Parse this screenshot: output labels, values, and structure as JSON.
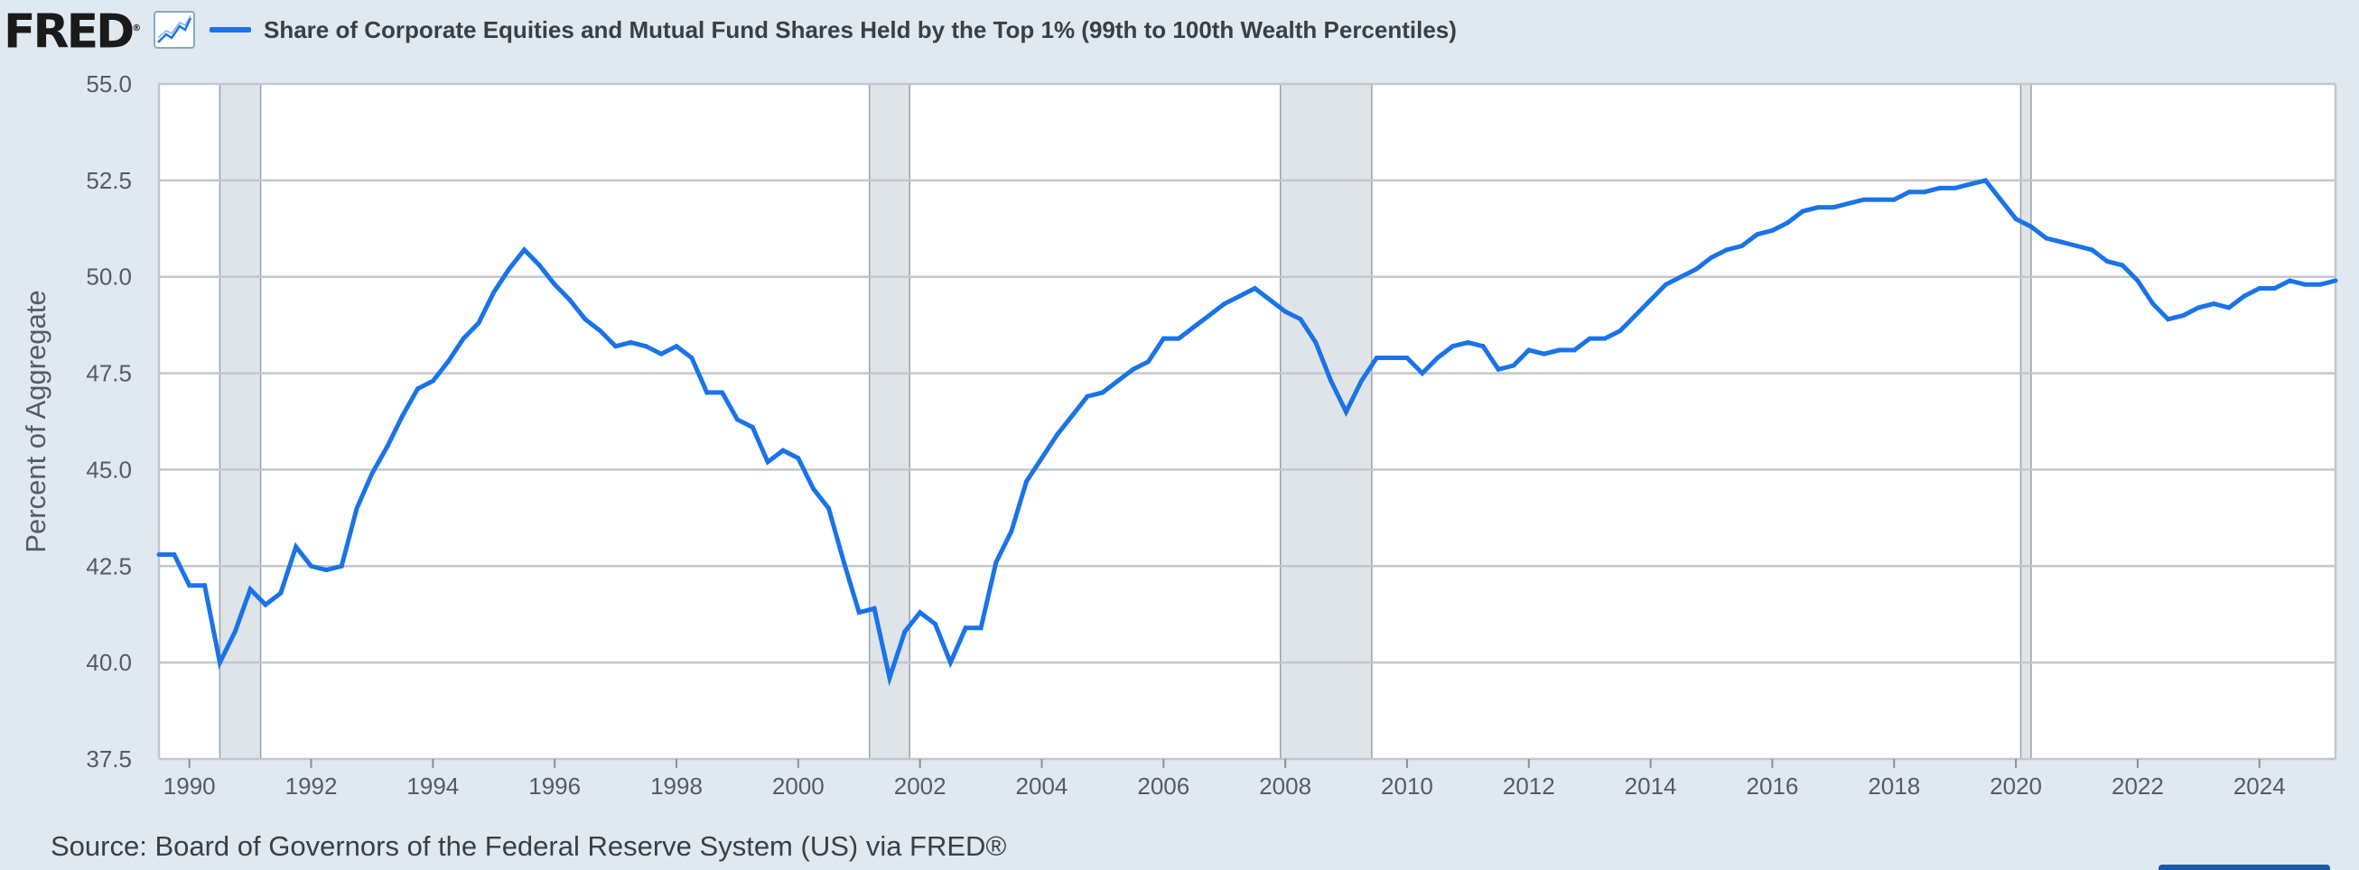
{
  "header": {
    "logo_text": "FRED",
    "logo_mark": "®",
    "icon": "line-graph-icon",
    "series_color": "#1a73e8"
  },
  "source_text": "Source: Board of Governors of the Federal Reserve System (US) via FRED®",
  "chart_data": {
    "type": "line",
    "title": "Share of Corporate Equities and Mutual Fund Shares Held by the Top 1% (99th to 100th Wealth Percentiles)",
    "ylabel": "Percent of Aggregate",
    "xlabel": "",
    "ylim": [
      37.5,
      55.0
    ],
    "xlim": [
      1989.5,
      2025.25
    ],
    "yticks": [
      "37.5",
      "40.0",
      "42.5",
      "45.0",
      "47.5",
      "50.0",
      "52.5",
      "55.0"
    ],
    "xticks": [
      "1990",
      "1992",
      "1994",
      "1996",
      "1998",
      "2000",
      "2002",
      "2004",
      "2006",
      "2008",
      "2010",
      "2012",
      "2014",
      "2016",
      "2018",
      "2020",
      "2022",
      "2024"
    ],
    "grid": true,
    "legend": "top-left",
    "recessions": [
      [
        1990.5,
        1991.17
      ],
      [
        2001.17,
        2001.83
      ],
      [
        2007.92,
        2009.42
      ],
      [
        2020.08,
        2020.25
      ]
    ],
    "series": [
      {
        "name": "Share of Corporate Equities and Mutual Fund Shares Held by the Top 1% (99th to 100th Wealth Percentiles)",
        "color": "#1a73e8",
        "points": [
          [
            1989.5,
            42.8
          ],
          [
            1989.75,
            42.8
          ],
          [
            1990.0,
            42.0
          ],
          [
            1990.25,
            42.0
          ],
          [
            1990.5,
            40.0
          ],
          [
            1990.75,
            40.8
          ],
          [
            1991.0,
            41.9
          ],
          [
            1991.25,
            41.5
          ],
          [
            1991.5,
            41.8
          ],
          [
            1991.75,
            43.0
          ],
          [
            1992.0,
            42.5
          ],
          [
            1992.25,
            42.4
          ],
          [
            1992.5,
            42.5
          ],
          [
            1992.75,
            44.0
          ],
          [
            1993.0,
            44.9
          ],
          [
            1993.25,
            45.6
          ],
          [
            1993.5,
            46.4
          ],
          [
            1993.75,
            47.1
          ],
          [
            1994.0,
            47.3
          ],
          [
            1994.25,
            47.8
          ],
          [
            1994.5,
            48.4
          ],
          [
            1994.75,
            48.8
          ],
          [
            1995.0,
            49.6
          ],
          [
            1995.25,
            50.2
          ],
          [
            1995.5,
            50.7
          ],
          [
            1995.75,
            50.3
          ],
          [
            1996.0,
            49.8
          ],
          [
            1996.25,
            49.4
          ],
          [
            1996.5,
            48.9
          ],
          [
            1996.75,
            48.6
          ],
          [
            1997.0,
            48.2
          ],
          [
            1997.25,
            48.3
          ],
          [
            1997.5,
            48.2
          ],
          [
            1997.75,
            48.0
          ],
          [
            1998.0,
            48.2
          ],
          [
            1998.25,
            47.9
          ],
          [
            1998.5,
            47.0
          ],
          [
            1998.75,
            47.0
          ],
          [
            1999.0,
            46.3
          ],
          [
            1999.25,
            46.1
          ],
          [
            1999.5,
            45.2
          ],
          [
            1999.75,
            45.5
          ],
          [
            2000.0,
            45.3
          ],
          [
            2000.25,
            44.5
          ],
          [
            2000.5,
            44.0
          ],
          [
            2000.75,
            42.6
          ],
          [
            2001.0,
            41.3
          ],
          [
            2001.25,
            41.4
          ],
          [
            2001.5,
            39.6
          ],
          [
            2001.75,
            40.8
          ],
          [
            2002.0,
            41.3
          ],
          [
            2002.25,
            41.0
          ],
          [
            2002.5,
            40.0
          ],
          [
            2002.75,
            40.9
          ],
          [
            2003.0,
            40.9
          ],
          [
            2003.25,
            42.6
          ],
          [
            2003.5,
            43.4
          ],
          [
            2003.75,
            44.7
          ],
          [
            2004.0,
            45.3
          ],
          [
            2004.25,
            45.9
          ],
          [
            2004.5,
            46.4
          ],
          [
            2004.75,
            46.9
          ],
          [
            2005.0,
            47.0
          ],
          [
            2005.25,
            47.3
          ],
          [
            2005.5,
            47.6
          ],
          [
            2005.75,
            47.8
          ],
          [
            2006.0,
            48.4
          ],
          [
            2006.25,
            48.4
          ],
          [
            2006.5,
            48.7
          ],
          [
            2006.75,
            49.0
          ],
          [
            2007.0,
            49.3
          ],
          [
            2007.25,
            49.5
          ],
          [
            2007.5,
            49.7
          ],
          [
            2007.75,
            49.4
          ],
          [
            2008.0,
            49.1
          ],
          [
            2008.25,
            48.9
          ],
          [
            2008.5,
            48.3
          ],
          [
            2008.75,
            47.3
          ],
          [
            2009.0,
            46.5
          ],
          [
            2009.25,
            47.3
          ],
          [
            2009.5,
            47.9
          ],
          [
            2009.75,
            47.9
          ],
          [
            2010.0,
            47.9
          ],
          [
            2010.25,
            47.5
          ],
          [
            2010.5,
            47.9
          ],
          [
            2010.75,
            48.2
          ],
          [
            2011.0,
            48.3
          ],
          [
            2011.25,
            48.2
          ],
          [
            2011.5,
            47.6
          ],
          [
            2011.75,
            47.7
          ],
          [
            2012.0,
            48.1
          ],
          [
            2012.25,
            48.0
          ],
          [
            2012.5,
            48.1
          ],
          [
            2012.75,
            48.1
          ],
          [
            2013.0,
            48.4
          ],
          [
            2013.25,
            48.4
          ],
          [
            2013.5,
            48.6
          ],
          [
            2013.75,
            49.0
          ],
          [
            2014.0,
            49.4
          ],
          [
            2014.25,
            49.8
          ],
          [
            2014.5,
            50.0
          ],
          [
            2014.75,
            50.2
          ],
          [
            2015.0,
            50.5
          ],
          [
            2015.25,
            50.7
          ],
          [
            2015.5,
            50.8
          ],
          [
            2015.75,
            51.1
          ],
          [
            2016.0,
            51.2
          ],
          [
            2016.25,
            51.4
          ],
          [
            2016.5,
            51.7
          ],
          [
            2016.75,
            51.8
          ],
          [
            2017.0,
            51.8
          ],
          [
            2017.25,
            51.9
          ],
          [
            2017.5,
            52.0
          ],
          [
            2017.75,
            52.0
          ],
          [
            2018.0,
            52.0
          ],
          [
            2018.25,
            52.2
          ],
          [
            2018.5,
            52.2
          ],
          [
            2018.75,
            52.3
          ],
          [
            2019.0,
            52.3
          ],
          [
            2019.25,
            52.4
          ],
          [
            2019.5,
            52.5
          ],
          [
            2019.75,
            52.0
          ],
          [
            2020.0,
            51.5
          ],
          [
            2020.25,
            51.3
          ],
          [
            2020.5,
            51.0
          ],
          [
            2020.75,
            50.9
          ],
          [
            2021.0,
            50.8
          ],
          [
            2021.25,
            50.7
          ],
          [
            2021.5,
            50.4
          ],
          [
            2021.75,
            50.3
          ],
          [
            2022.0,
            49.9
          ],
          [
            2022.25,
            49.3
          ],
          [
            2022.5,
            48.9
          ],
          [
            2022.75,
            49.0
          ],
          [
            2023.0,
            49.2
          ],
          [
            2023.25,
            49.3
          ],
          [
            2023.5,
            49.2
          ],
          [
            2023.75,
            49.5
          ],
          [
            2024.0,
            49.7
          ],
          [
            2024.25,
            49.7
          ],
          [
            2024.5,
            49.9
          ],
          [
            2024.75,
            49.8
          ],
          [
            2025.0,
            49.8
          ],
          [
            2025.25,
            49.9
          ]
        ]
      }
    ]
  }
}
